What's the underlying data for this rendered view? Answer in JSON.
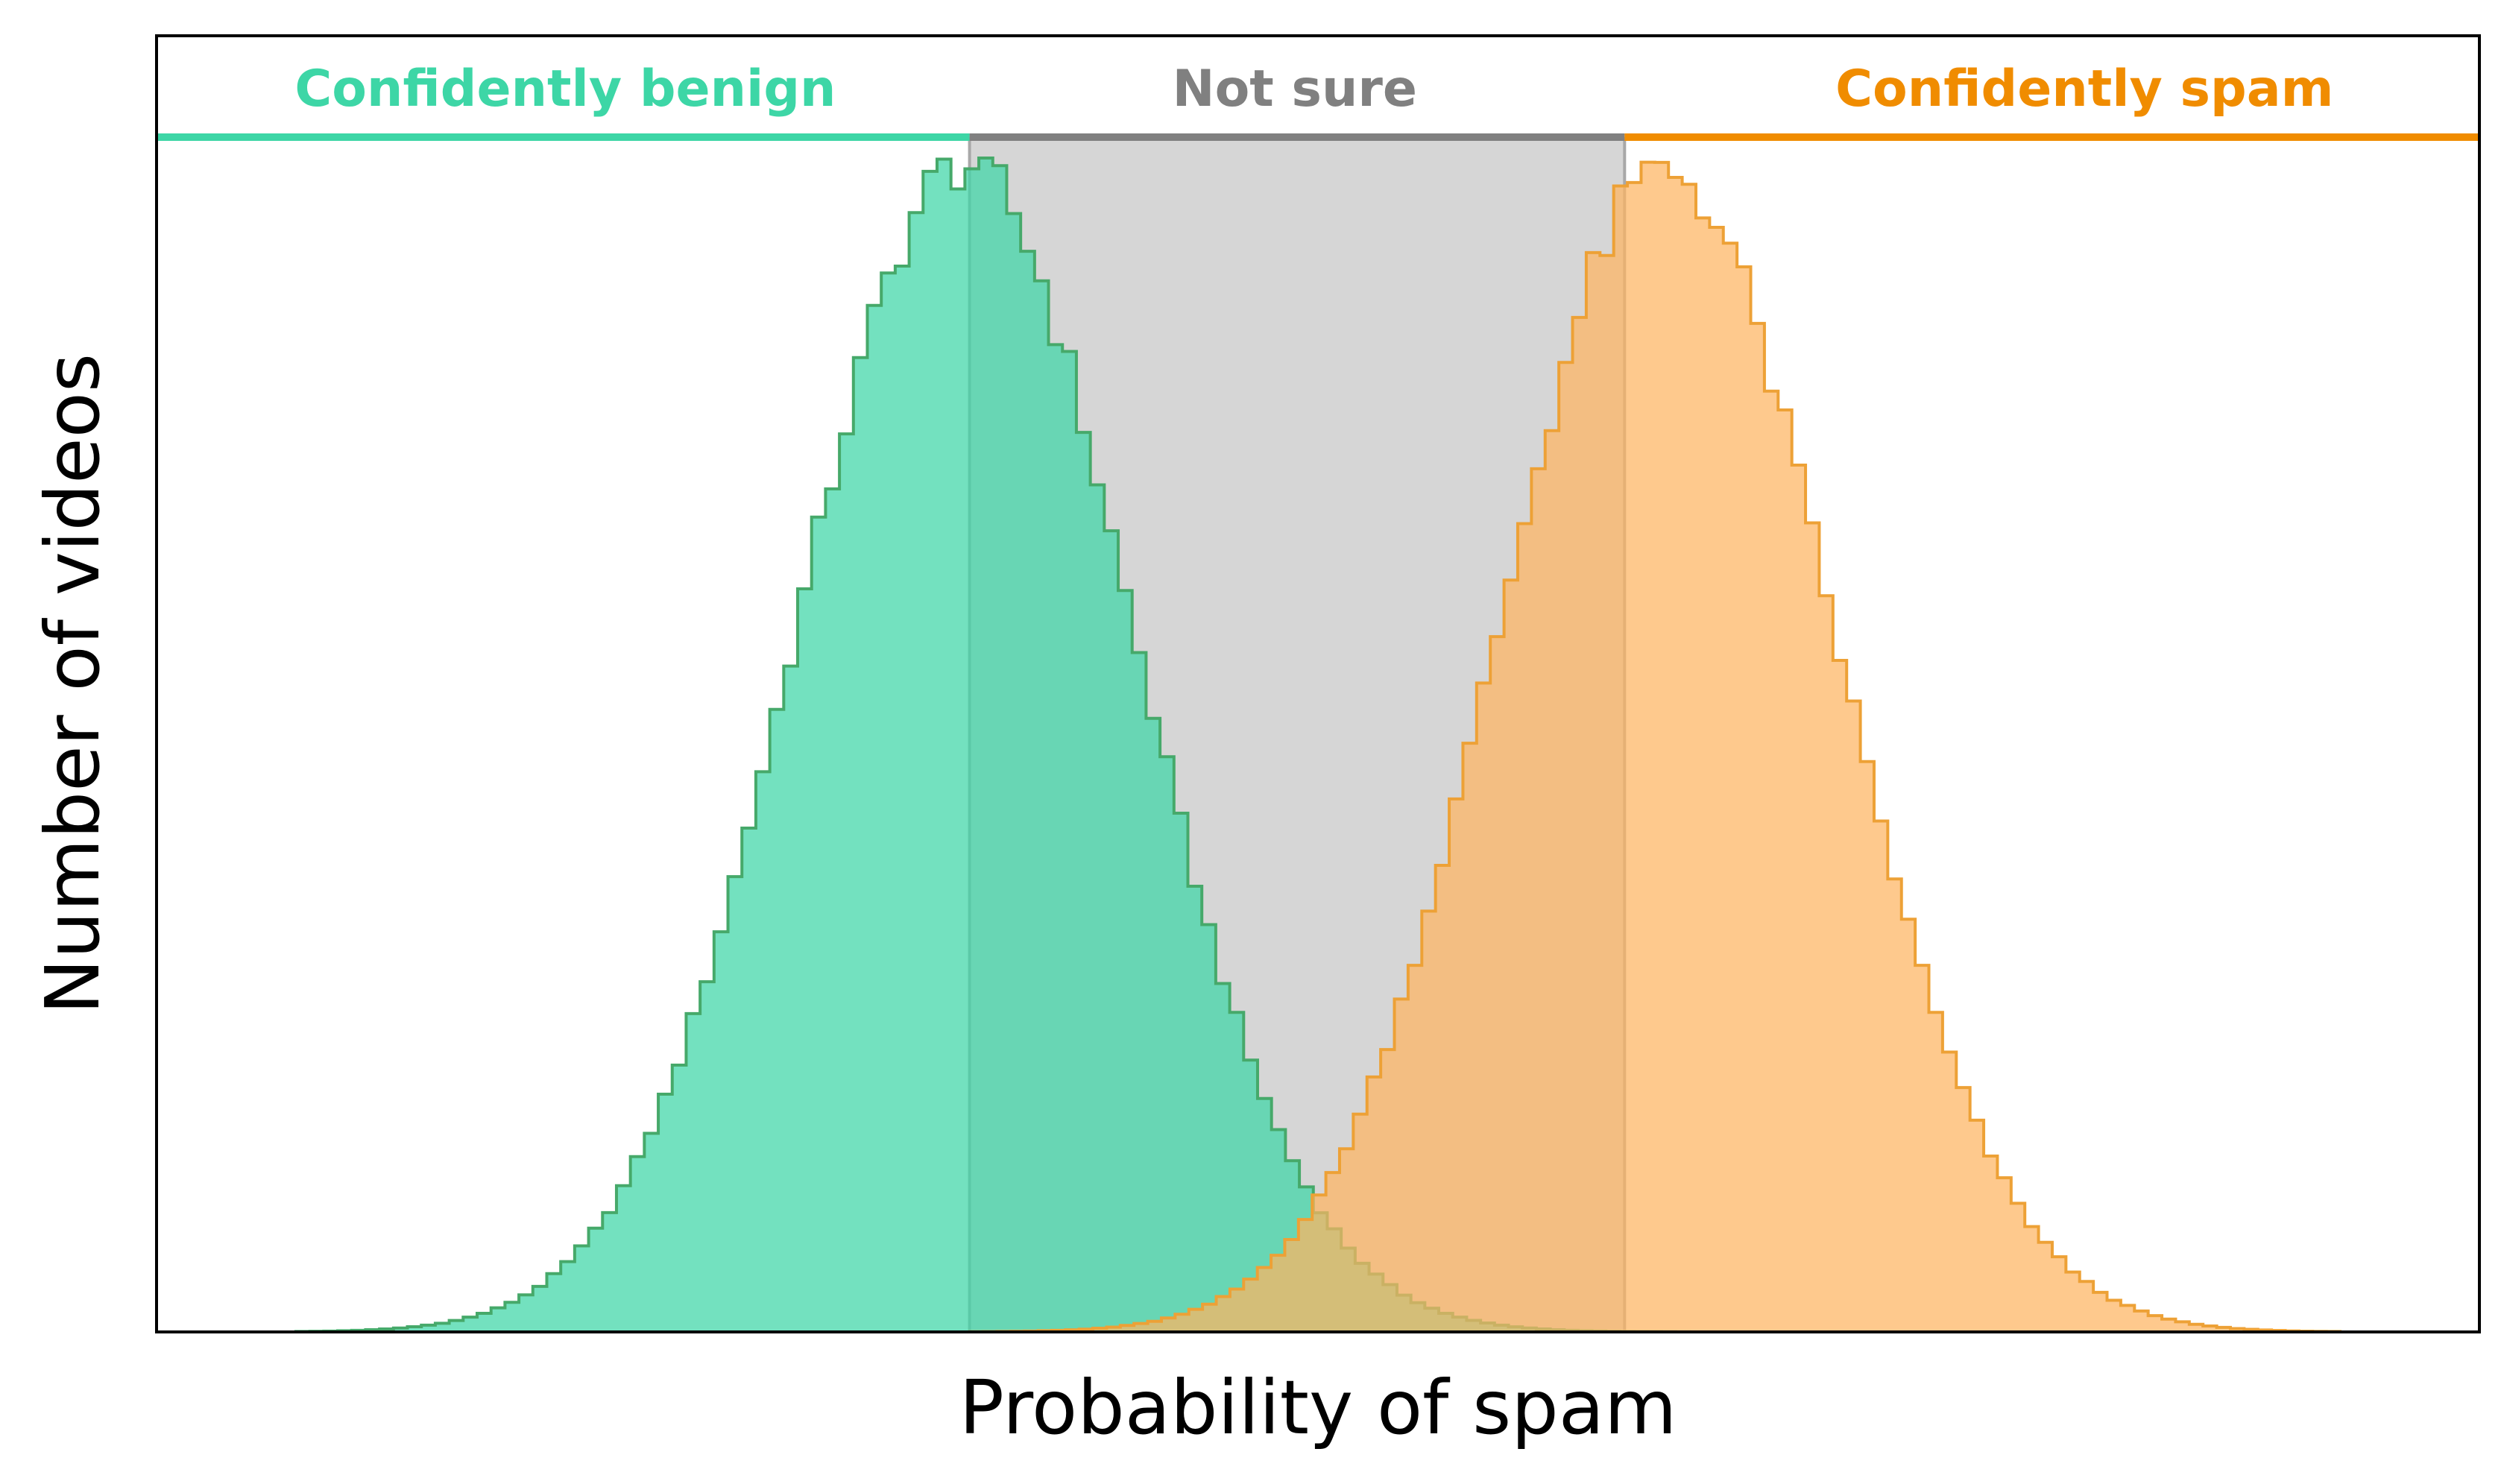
{
  "chart_data": {
    "type": "histogram",
    "xlabel": "Probability of spam",
    "ylabel": "Number of videos",
    "xlim": [
      0,
      1
    ],
    "ylim": [
      0,
      1
    ],
    "ticks_shown": false,
    "grid": false,
    "thresholds": [
      0.35,
      0.632
    ],
    "regions": [
      {
        "label": "Confidently benign",
        "x_from": 0.0,
        "x_to": 0.35,
        "color": "#3dd6a6"
      },
      {
        "label": "Not sure",
        "x_from": 0.35,
        "x_to": 0.632,
        "color": "#808080"
      },
      {
        "label": "Confidently spam",
        "x_from": 0.632,
        "x_to": 1.0,
        "color": "#f08c00"
      }
    ],
    "series": [
      {
        "distribution": "normal",
        "mean": 0.348,
        "sd": 0.072,
        "peak": 0.995,
        "x_range": [
          0.06,
          0.66
        ],
        "bins": 100,
        "fill": "#3dd6a6",
        "edge": "#46a96a"
      },
      {
        "distribution": "normal",
        "mean": 0.65,
        "sd": 0.072,
        "peak": 0.99,
        "x_range": [
          0.35,
          0.94
        ],
        "bins": 100,
        "fill": "#fdb461",
        "edge": "#eda136"
      }
    ]
  }
}
